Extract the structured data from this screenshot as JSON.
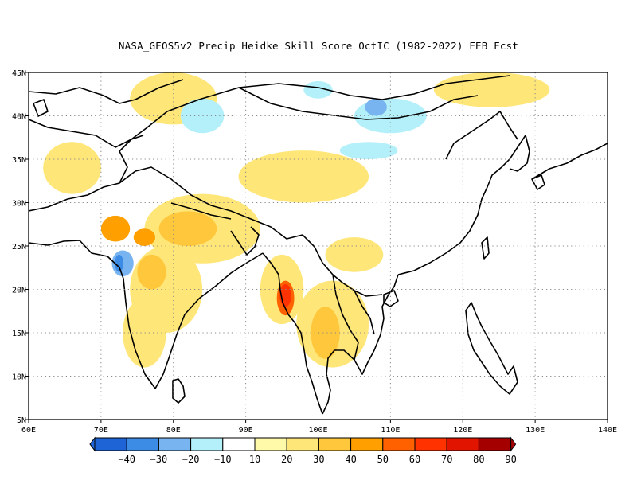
{
  "title": "NASA_GEOS5v2 Precip Heidke Skill Score OctIC (1982-2022) FEB Fcst",
  "map": {
    "lon_range": [
      60,
      140
    ],
    "lat_range": [
      5,
      45
    ],
    "lon_ticks": [
      "60E",
      "70E",
      "80E",
      "90E",
      "100E",
      "110E",
      "120E",
      "130E",
      "140E"
    ],
    "lat_ticks": [
      "5N",
      "10N",
      "15N",
      "20N",
      "25N",
      "30N",
      "35N",
      "40N",
      "45N"
    ],
    "grid": "dotted"
  },
  "colorbar": {
    "labels": [
      "-40",
      "-30",
      "-20",
      "-10",
      "10",
      "20",
      "30",
      "40",
      "50",
      "60",
      "70",
      "80",
      "90"
    ],
    "colors": [
      "#1e64d6",
      "#3c8ce6",
      "#78b4f0",
      "#b4f0fa",
      "#ffffff",
      "#fffaaa",
      "#ffe678",
      "#ffc83c",
      "#ffa000",
      "#ff6000",
      "#ff3200",
      "#e11400",
      "#a50000"
    ]
  },
  "regions": [
    {
      "level": 20,
      "lon": 84,
      "lat": 27,
      "rx": 8,
      "ry": 4
    },
    {
      "level": 20,
      "lon": 79,
      "lat": 20,
      "rx": 5,
      "ry": 5
    },
    {
      "level": 20,
      "lon": 76,
      "lat": 15,
      "rx": 3,
      "ry": 4
    },
    {
      "level": 20,
      "lon": 80,
      "lat": 42,
      "rx": 6,
      "ry": 3
    },
    {
      "level": 20,
      "lon": 98,
      "lat": 33,
      "rx": 9,
      "ry": 3
    },
    {
      "level": 20,
      "lon": 102,
      "lat": 16,
      "rx": 5,
      "ry": 5
    },
    {
      "level": 20,
      "lon": 95,
      "lat": 20,
      "rx": 3,
      "ry": 4
    },
    {
      "level": 20,
      "lon": 66,
      "lat": 34,
      "rx": 4,
      "ry": 3
    },
    {
      "level": 20,
      "lon": 124,
      "lat": 43,
      "rx": 8,
      "ry": 2
    },
    {
      "level": 20,
      "lon": 105,
      "lat": 24,
      "rx": 4,
      "ry": 2
    },
    {
      "level": 30,
      "lon": 82,
      "lat": 27,
      "rx": 4,
      "ry": 2
    },
    {
      "level": 30,
      "lon": 77,
      "lat": 22,
      "rx": 2,
      "ry": 2
    },
    {
      "level": 30,
      "lon": 101,
      "lat": 15,
      "rx": 2,
      "ry": 3
    },
    {
      "level": 40,
      "lon": 72,
      "lat": 27,
      "rx": 2,
      "ry": 1.5
    },
    {
      "level": 40,
      "lon": 76,
      "lat": 26,
      "rx": 1.5,
      "ry": 1
    },
    {
      "level": 50,
      "lon": 95.5,
      "lat": 19,
      "rx": 1.2,
      "ry": 2
    },
    {
      "level": 60,
      "lon": 95.5,
      "lat": 19.3,
      "rx": 0.8,
      "ry": 1.3
    },
    {
      "level": -10,
      "lon": 84,
      "lat": 40,
      "rx": 3,
      "ry": 2
    },
    {
      "level": -10,
      "lon": 110,
      "lat": 40,
      "rx": 5,
      "ry": 2
    },
    {
      "level": -10,
      "lon": 107,
      "lat": 36,
      "rx": 4,
      "ry": 1
    },
    {
      "level": -10,
      "lon": 100,
      "lat": 43,
      "rx": 2,
      "ry": 1
    },
    {
      "level": -20,
      "lon": 108,
      "lat": 41,
      "rx": 1.5,
      "ry": 1
    },
    {
      "level": -20,
      "lon": 73,
      "lat": 23,
      "rx": 1.5,
      "ry": 1.5
    },
    {
      "level": -30,
      "lon": 72.5,
      "lat": 23,
      "rx": 0.6,
      "ry": 1
    }
  ]
}
